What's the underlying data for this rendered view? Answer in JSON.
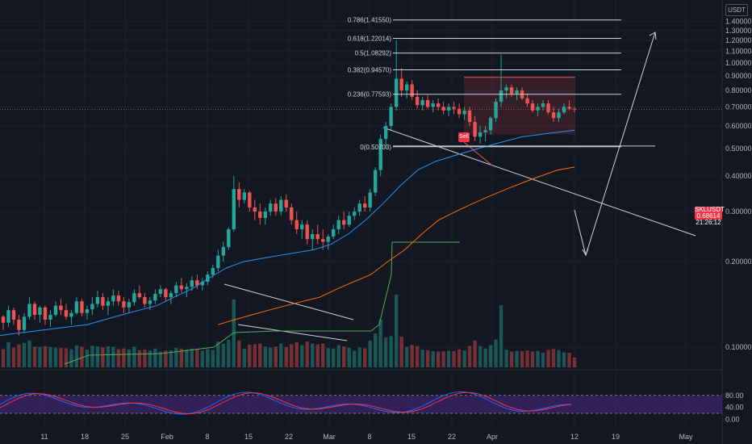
{
  "toolbar": {
    "currency": "USDT"
  },
  "symbol_tag": {
    "symbol": "SKLUSDT",
    "price": "0.68614",
    "countdown": "21:26:12",
    "color": "#f23645"
  },
  "sell_label": "Sell",
  "colors": {
    "background": "#131722",
    "up": "#26a69a",
    "down": "#ef5350",
    "ema_fast": "#2196f3",
    "ema_slow": "#ff6d00",
    "stoch_k": "#2962ff",
    "stoch_d": "#f23645",
    "stoch_band": "#4a2a82",
    "white_line": "#d1d4dc"
  },
  "chart_data": [
    {
      "type": "candlestick",
      "y_axis": {
        "scale": "log",
        "range": [
          0.1,
          1.6
        ],
        "ticks": [
          "1.40000",
          "1.30000",
          "1.20000",
          "1.10000",
          "1.00000",
          "0.90000",
          "0.80000",
          "0.70000",
          "0.60000",
          "0.50000",
          "0.40000",
          "0.30000",
          "0.20000",
          "0.10000"
        ]
      },
      "x_axis": {
        "ticks": [
          "11",
          "18",
          "25",
          "Feb",
          "8",
          "15",
          "22",
          "Mar",
          "8",
          "15",
          "22",
          "Apr",
          "12",
          "19",
          "May"
        ]
      },
      "last_price": 0.68614,
      "fibonacci": [
        {
          "label": "0.786(1.41550)",
          "value": 1.4155
        },
        {
          "label": "0.618(1.22014)",
          "value": 1.22014
        },
        {
          "label": "0.5(1.08292)",
          "value": 1.08292
        },
        {
          "label": "0.382(0.94570)",
          "value": 0.9457
        },
        {
          "label": "0.236(0.77593)",
          "value": 0.77593
        },
        {
          "label": "0(0.50703)",
          "value": 0.50703
        }
      ],
      "candles": [
        [
          0.128,
          0.13,
          0.115,
          0.122
        ],
        [
          0.122,
          0.14,
          0.118,
          0.135
        ],
        [
          0.135,
          0.138,
          0.12,
          0.125
        ],
        [
          0.125,
          0.13,
          0.11,
          0.115
        ],
        [
          0.115,
          0.132,
          0.112,
          0.128
        ],
        [
          0.128,
          0.15,
          0.125,
          0.142
        ],
        [
          0.142,
          0.145,
          0.125,
          0.13
        ],
        [
          0.13,
          0.14,
          0.122,
          0.138
        ],
        [
          0.138,
          0.14,
          0.12,
          0.125
        ],
        [
          0.125,
          0.135,
          0.118,
          0.13
        ],
        [
          0.13,
          0.145,
          0.128,
          0.14
        ],
        [
          0.14,
          0.148,
          0.13,
          0.135
        ],
        [
          0.135,
          0.142,
          0.125,
          0.128
        ],
        [
          0.128,
          0.135,
          0.12,
          0.132
        ],
        [
          0.132,
          0.15,
          0.13,
          0.145
        ],
        [
          0.145,
          0.148,
          0.128,
          0.132
        ],
        [
          0.132,
          0.14,
          0.125,
          0.136
        ],
        [
          0.136,
          0.15,
          0.13,
          0.142
        ],
        [
          0.142,
          0.158,
          0.138,
          0.15
        ],
        [
          0.15,
          0.155,
          0.135,
          0.14
        ],
        [
          0.14,
          0.15,
          0.13,
          0.145
        ],
        [
          0.145,
          0.16,
          0.14,
          0.152
        ],
        [
          0.152,
          0.158,
          0.14,
          0.145
        ],
        [
          0.145,
          0.15,
          0.132,
          0.138
        ],
        [
          0.138,
          0.148,
          0.132,
          0.144
        ],
        [
          0.144,
          0.16,
          0.14,
          0.155
        ],
        [
          0.155,
          0.165,
          0.148,
          0.15
        ],
        [
          0.15,
          0.155,
          0.138,
          0.142
        ],
        [
          0.142,
          0.15,
          0.135,
          0.146
        ],
        [
          0.146,
          0.16,
          0.142,
          0.154
        ],
        [
          0.154,
          0.165,
          0.15,
          0.16
        ],
        [
          0.16,
          0.162,
          0.145,
          0.15
        ],
        [
          0.15,
          0.158,
          0.142,
          0.155
        ],
        [
          0.155,
          0.17,
          0.15,
          0.165
        ],
        [
          0.165,
          0.175,
          0.155,
          0.16
        ],
        [
          0.16,
          0.168,
          0.15,
          0.163
        ],
        [
          0.163,
          0.178,
          0.158,
          0.172
        ],
        [
          0.172,
          0.18,
          0.16,
          0.165
        ],
        [
          0.165,
          0.175,
          0.158,
          0.17
        ],
        [
          0.17,
          0.185,
          0.165,
          0.18
        ],
        [
          0.18,
          0.195,
          0.175,
          0.19
        ],
        [
          0.19,
          0.22,
          0.185,
          0.21
        ],
        [
          0.21,
          0.235,
          0.2,
          0.225
        ],
        [
          0.225,
          0.265,
          0.22,
          0.26
        ],
        [
          0.26,
          0.4,
          0.255,
          0.36
        ],
        [
          0.36,
          0.38,
          0.31,
          0.33
        ],
        [
          0.33,
          0.36,
          0.32,
          0.35
        ],
        [
          0.35,
          0.355,
          0.3,
          0.31
        ],
        [
          0.31,
          0.33,
          0.28,
          0.3
        ],
        [
          0.3,
          0.32,
          0.27,
          0.285
        ],
        [
          0.285,
          0.31,
          0.27,
          0.3
        ],
        [
          0.3,
          0.33,
          0.29,
          0.32
        ],
        [
          0.32,
          0.335,
          0.29,
          0.3
        ],
        [
          0.3,
          0.34,
          0.29,
          0.33
        ],
        [
          0.33,
          0.345,
          0.3,
          0.31
        ],
        [
          0.31,
          0.32,
          0.27,
          0.28
        ],
        [
          0.28,
          0.3,
          0.25,
          0.26
        ],
        [
          0.26,
          0.28,
          0.24,
          0.27
        ],
        [
          0.27,
          0.28,
          0.23,
          0.24
        ],
        [
          0.24,
          0.26,
          0.22,
          0.25
        ],
        [
          0.25,
          0.27,
          0.23,
          0.24
        ],
        [
          0.24,
          0.26,
          0.22,
          0.235
        ],
        [
          0.235,
          0.25,
          0.22,
          0.245
        ],
        [
          0.245,
          0.27,
          0.24,
          0.26
        ],
        [
          0.26,
          0.29,
          0.25,
          0.28
        ],
        [
          0.28,
          0.3,
          0.26,
          0.27
        ],
        [
          0.27,
          0.3,
          0.265,
          0.29
        ],
        [
          0.29,
          0.31,
          0.28,
          0.3
        ],
        [
          0.3,
          0.33,
          0.29,
          0.32
        ],
        [
          0.32,
          0.34,
          0.3,
          0.31
        ],
        [
          0.31,
          0.36,
          0.3,
          0.35
        ],
        [
          0.35,
          0.43,
          0.34,
          0.42
        ],
        [
          0.42,
          0.56,
          0.4,
          0.54
        ],
        [
          0.54,
          0.62,
          0.5,
          0.6
        ],
        [
          0.6,
          0.72,
          0.58,
          0.7
        ],
        [
          0.7,
          1.2,
          0.68,
          0.88
        ],
        [
          0.88,
          0.96,
          0.76,
          0.8
        ],
        [
          0.8,
          0.86,
          0.75,
          0.84
        ],
        [
          0.84,
          0.87,
          0.74,
          0.76
        ],
        [
          0.76,
          0.8,
          0.69,
          0.71
        ],
        [
          0.71,
          0.76,
          0.68,
          0.74
        ],
        [
          0.74,
          0.77,
          0.69,
          0.7
        ],
        [
          0.7,
          0.74,
          0.67,
          0.72
        ],
        [
          0.72,
          0.75,
          0.68,
          0.7
        ],
        [
          0.7,
          0.73,
          0.66,
          0.68
        ],
        [
          0.68,
          0.72,
          0.65,
          0.7
        ],
        [
          0.7,
          0.73,
          0.66,
          0.69
        ],
        [
          0.69,
          0.72,
          0.64,
          0.66
        ],
        [
          0.66,
          0.7,
          0.63,
          0.68
        ],
        [
          0.68,
          0.7,
          0.6,
          0.62
        ],
        [
          0.62,
          0.65,
          0.53,
          0.55
        ],
        [
          0.55,
          0.6,
          0.52,
          0.57
        ],
        [
          0.57,
          0.6,
          0.53,
          0.58
        ],
        [
          0.58,
          0.65,
          0.56,
          0.64
        ],
        [
          0.64,
          0.75,
          0.62,
          0.73
        ],
        [
          0.73,
          1.07,
          0.7,
          0.8
        ],
        [
          0.8,
          0.84,
          0.75,
          0.82
        ],
        [
          0.82,
          0.84,
          0.76,
          0.78
        ],
        [
          0.78,
          0.82,
          0.74,
          0.8
        ],
        [
          0.8,
          0.82,
          0.74,
          0.75
        ],
        [
          0.75,
          0.78,
          0.7,
          0.72
        ],
        [
          0.72,
          0.74,
          0.67,
          0.68
        ],
        [
          0.68,
          0.72,
          0.65,
          0.7
        ],
        [
          0.7,
          0.74,
          0.68,
          0.72
        ],
        [
          0.72,
          0.74,
          0.66,
          0.67
        ],
        [
          0.67,
          0.7,
          0.62,
          0.64
        ],
        [
          0.64,
          0.69,
          0.62,
          0.67
        ],
        [
          0.67,
          0.72,
          0.66,
          0.7
        ],
        [
          0.7,
          0.74,
          0.68,
          0.69
        ],
        [
          0.69,
          0.7,
          0.67,
          0.686
        ]
      ],
      "ema_fast": [
        0.11,
        0.112,
        0.114,
        0.116,
        0.118,
        0.12,
        0.125,
        0.13,
        0.135,
        0.14,
        0.15,
        0.16,
        0.175,
        0.19,
        0.2,
        0.205,
        0.21,
        0.215,
        0.22,
        0.23,
        0.25,
        0.28,
        0.32,
        0.37,
        0.42,
        0.45,
        0.47,
        0.49,
        0.51,
        0.53,
        0.55,
        0.56,
        0.57,
        0.58
      ],
      "ema_slow": [
        0.12,
        0.125,
        0.13,
        0.135,
        0.14,
        0.145,
        0.15,
        0.16,
        0.17,
        0.18,
        0.2,
        0.22,
        0.25,
        0.28,
        0.3,
        0.32,
        0.34,
        0.36,
        0.38,
        0.4,
        0.42,
        0.43
      ],
      "stochastic": {
        "ticks": [
          "80.00",
          "40.00",
          "0.00"
        ],
        "upper": 80,
        "lower": 20
      }
    }
  ]
}
